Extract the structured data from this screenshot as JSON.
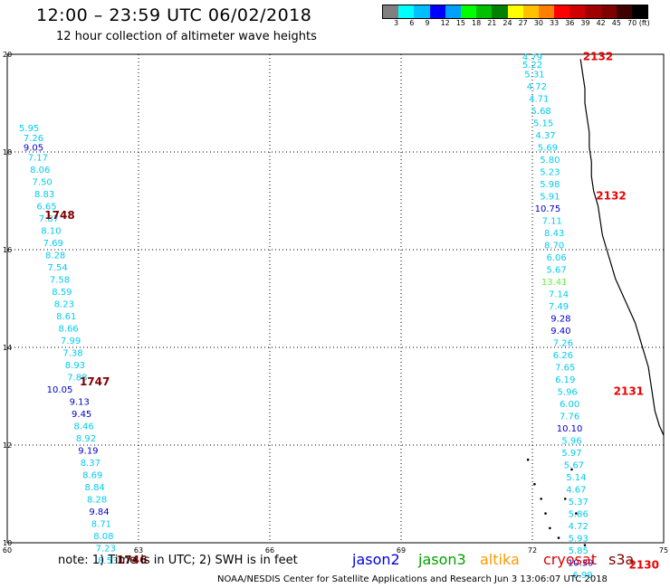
{
  "header": {
    "title": "12:00 – 23:59 UTC 06/02/2018",
    "subtitle": "12 hour collection of altimeter wave heights"
  },
  "legend": {
    "colors": [
      "#808080",
      "#00ffff",
      "#00bfff",
      "#0000ff",
      "#00a0ff",
      "#00ff00",
      "#00c000",
      "#008000",
      "#ffff00",
      "#ffc000",
      "#ff8000",
      "#ff0000",
      "#d00000",
      "#a00000",
      "#800000",
      "#400000",
      "#000000"
    ],
    "labels": [
      "3",
      "6",
      "9",
      "12",
      "15",
      "18",
      "21",
      "24",
      "27",
      "30",
      "33",
      "36",
      "39",
      "42",
      "45",
      "70 (ft)"
    ]
  },
  "axes": {
    "x_ticks": [
      "60",
      "63",
      "66",
      "69",
      "72",
      "75"
    ],
    "y_ticks": [
      "20",
      "18",
      "16",
      "14",
      "12",
      "10"
    ],
    "x_range": [
      60,
      75
    ],
    "y_range": [
      10,
      20
    ]
  },
  "tracks": [
    {
      "name": "track-1748",
      "tag": "1748",
      "tag_lat": 16.7,
      "tag_lon": 61.2,
      "points": [
        {
          "lat": 18.5,
          "lon": 60.5,
          "v": "5.95",
          "c": "#00ccee"
        },
        {
          "lat": 18.3,
          "lon": 60.6,
          "v": "7.26",
          "c": "#00ccee"
        },
        {
          "lat": 18.1,
          "lon": 60.6,
          "v": "9.05",
          "c": "#0000cc"
        },
        {
          "lat": 17.9,
          "lon": 60.7,
          "v": "7.17",
          "c": "#00ccee"
        },
        {
          "lat": 17.65,
          "lon": 60.75,
          "v": "8.06",
          "c": "#00ccee"
        },
        {
          "lat": 17.4,
          "lon": 60.8,
          "v": "7.50",
          "c": "#00ccee"
        },
        {
          "lat": 17.15,
          "lon": 60.85,
          "v": "8.83",
          "c": "#00ccee"
        },
        {
          "lat": 16.9,
          "lon": 60.9,
          "v": "6.65",
          "c": "#00ccee"
        },
        {
          "lat": 16.65,
          "lon": 60.95,
          "v": "7.87",
          "c": "#00ccee"
        },
        {
          "lat": 16.4,
          "lon": 61.0,
          "v": "8.10",
          "c": "#00ccee"
        },
        {
          "lat": 16.15,
          "lon": 61.05,
          "v": "7.69",
          "c": "#00ccee"
        },
        {
          "lat": 15.9,
          "lon": 61.1,
          "v": "8.28",
          "c": "#00ccee"
        },
        {
          "lat": 15.65,
          "lon": 61.15,
          "v": "7.54",
          "c": "#00ccee"
        },
        {
          "lat": 15.4,
          "lon": 61.2,
          "v": "7.58",
          "c": "#00ccee"
        },
        {
          "lat": 15.15,
          "lon": 61.25,
          "v": "8.59",
          "c": "#00ccee"
        },
        {
          "lat": 14.9,
          "lon": 61.3,
          "v": "8.23",
          "c": "#00ccee"
        },
        {
          "lat": 14.65,
          "lon": 61.35,
          "v": "8.61",
          "c": "#00ccee"
        },
        {
          "lat": 14.4,
          "lon": 61.4,
          "v": "8.66",
          "c": "#00ccee"
        },
        {
          "lat": 14.15,
          "lon": 61.45,
          "v": "7.99",
          "c": "#00ccee"
        },
        {
          "lat": 13.9,
          "lon": 61.5,
          "v": "7.38",
          "c": "#00ccee"
        }
      ]
    },
    {
      "name": "track-1747",
      "tag": "1747",
      "tag_lat": 13.3,
      "tag_lon": 62.0,
      "points": [
        {
          "lat": 13.65,
          "lon": 61.55,
          "v": "8.93",
          "c": "#00ccee"
        },
        {
          "lat": 13.4,
          "lon": 61.6,
          "v": "7.88",
          "c": "#00ccee"
        },
        {
          "lat": 13.15,
          "lon": 61.2,
          "v": "10.05",
          "c": "#0000cc"
        },
        {
          "lat": 12.9,
          "lon": 61.65,
          "v": "9.13",
          "c": "#0000cc"
        },
        {
          "lat": 12.65,
          "lon": 61.7,
          "v": "9.45",
          "c": "#0000cc"
        },
        {
          "lat": 12.4,
          "lon": 61.75,
          "v": "8.46",
          "c": "#00ccee"
        },
        {
          "lat": 12.15,
          "lon": 61.8,
          "v": "8.92",
          "c": "#00ccee"
        },
        {
          "lat": 11.9,
          "lon": 61.85,
          "v": "9.19",
          "c": "#0000cc"
        },
        {
          "lat": 11.65,
          "lon": 61.9,
          "v": "8.37",
          "c": "#00ccee"
        },
        {
          "lat": 11.4,
          "lon": 61.95,
          "v": "8.69",
          "c": "#00ccee"
        },
        {
          "lat": 11.15,
          "lon": 62.0,
          "v": "8.84",
          "c": "#00ccee"
        },
        {
          "lat": 10.9,
          "lon": 62.05,
          "v": "8.28",
          "c": "#00ccee"
        },
        {
          "lat": 10.65,
          "lon": 62.1,
          "v": "9.84",
          "c": "#0000cc"
        },
        {
          "lat": 10.4,
          "lon": 62.15,
          "v": "8.71",
          "c": "#00ccee"
        },
        {
          "lat": 10.15,
          "lon": 62.2,
          "v": "8.08",
          "c": "#00ccee"
        },
        {
          "lat": 9.9,
          "lon": 62.25,
          "v": "7.23",
          "c": "#00ccee"
        },
        {
          "lat": 9.65,
          "lon": 62.3,
          "v": "8.53",
          "c": "#00ccee"
        }
      ]
    },
    {
      "name": "track-1746",
      "tag": "1746",
      "tag_lat": 9.65,
      "tag_lon": 62.85,
      "points": []
    },
    {
      "name": "track-2132",
      "tag": "2132",
      "tag_lat": 19.95,
      "tag_lon": 73.5,
      "points": [
        {
          "lat": 19.95,
          "lon": 72.0,
          "v": "4.79",
          "c": "#00ccee"
        },
        {
          "lat": 19.8,
          "lon": 72.0,
          "v": "5.22",
          "c": "#00ccee"
        },
        {
          "lat": 19.6,
          "lon": 72.05,
          "v": "5.31",
          "c": "#00ccee"
        },
        {
          "lat": 19.35,
          "lon": 72.1,
          "v": "4.72",
          "c": "#00ccee"
        },
        {
          "lat": 19.1,
          "lon": 72.15,
          "v": "4.71",
          "c": "#00ccee"
        },
        {
          "lat": 18.85,
          "lon": 72.2,
          "v": "5.68",
          "c": "#00ccee"
        },
        {
          "lat": 18.6,
          "lon": 72.25,
          "v": "5.15",
          "c": "#00ccee"
        },
        {
          "lat": 18.35,
          "lon": 72.3,
          "v": "4.37",
          "c": "#00ccee"
        },
        {
          "lat": 18.1,
          "lon": 72.35,
          "v": "5.69",
          "c": "#00ccee"
        },
        {
          "lat": 17.85,
          "lon": 72.4,
          "v": "5.80",
          "c": "#00ccee"
        },
        {
          "lat": 17.6,
          "lon": 72.4,
          "v": "5.23",
          "c": "#00ccee"
        },
        {
          "lat": 17.35,
          "lon": 72.4,
          "v": "5.98",
          "c": "#00ccee"
        },
        {
          "lat": 17.1,
          "lon": 72.4,
          "v": "5.91",
          "c": "#00ccee"
        }
      ]
    },
    {
      "name": "track-2132b",
      "tag": "2132",
      "tag_lat": 17.1,
      "tag_lon": 73.8,
      "points": [
        {
          "lat": 16.85,
          "lon": 72.35,
          "v": "10.75",
          "c": "#0000cc"
        },
        {
          "lat": 16.6,
          "lon": 72.45,
          "v": "7.11",
          "c": "#00ccee"
        },
        {
          "lat": 16.35,
          "lon": 72.5,
          "v": "8.43",
          "c": "#00ccee"
        },
        {
          "lat": 16.1,
          "lon": 72.5,
          "v": "8.70",
          "c": "#00ccee"
        },
        {
          "lat": 15.85,
          "lon": 72.55,
          "v": "6.06",
          "c": "#00ccee"
        },
        {
          "lat": 15.6,
          "lon": 72.55,
          "v": "5.67",
          "c": "#00ccee"
        },
        {
          "lat": 15.35,
          "lon": 72.5,
          "v": "13.41",
          "c": "#66ee44"
        },
        {
          "lat": 15.1,
          "lon": 72.6,
          "v": "7.14",
          "c": "#00ccee"
        },
        {
          "lat": 14.85,
          "lon": 72.6,
          "v": "7.49",
          "c": "#00ccee"
        },
        {
          "lat": 14.6,
          "lon": 72.65,
          "v": "9.28",
          "c": "#0000cc"
        },
        {
          "lat": 14.35,
          "lon": 72.65,
          "v": "9.40",
          "c": "#0000cc"
        },
        {
          "lat": 14.1,
          "lon": 72.7,
          "v": "7.26",
          "c": "#00ccee"
        },
        {
          "lat": 13.85,
          "lon": 72.7,
          "v": "6.26",
          "c": "#00ccee"
        },
        {
          "lat": 13.6,
          "lon": 72.75,
          "v": "7.65",
          "c": "#00ccee"
        },
        {
          "lat": 13.35,
          "lon": 72.75,
          "v": "6.19",
          "c": "#00ccee"
        }
      ]
    },
    {
      "name": "track-2131",
      "tag": "2131",
      "tag_lat": 13.1,
      "tag_lon": 74.2,
      "points": [
        {
          "lat": 13.1,
          "lon": 72.8,
          "v": "5.96",
          "c": "#00ccee"
        },
        {
          "lat": 12.85,
          "lon": 72.85,
          "v": "6.00",
          "c": "#00ccee"
        },
        {
          "lat": 12.6,
          "lon": 72.85,
          "v": "7.76",
          "c": "#00ccee"
        },
        {
          "lat": 12.35,
          "lon": 72.85,
          "v": "10.10",
          "c": "#0000cc"
        },
        {
          "lat": 12.1,
          "lon": 72.9,
          "v": "5.96",
          "c": "#00ccee"
        },
        {
          "lat": 11.85,
          "lon": 72.9,
          "v": "5.97",
          "c": "#00ccee"
        },
        {
          "lat": 11.6,
          "lon": 72.95,
          "v": "5.67",
          "c": "#00ccee"
        },
        {
          "lat": 11.35,
          "lon": 73.0,
          "v": "5.14",
          "c": "#00ccee"
        },
        {
          "lat": 11.1,
          "lon": 73.0,
          "v": "4.67",
          "c": "#00ccee"
        },
        {
          "lat": 10.85,
          "lon": 73.05,
          "v": "5.37",
          "c": "#00ccee"
        },
        {
          "lat": 10.6,
          "lon": 73.05,
          "v": "5.86",
          "c": "#00ccee"
        },
        {
          "lat": 10.35,
          "lon": 73.05,
          "v": "4.72",
          "c": "#00ccee"
        },
        {
          "lat": 10.1,
          "lon": 73.05,
          "v": "5.93",
          "c": "#00ccee"
        },
        {
          "lat": 9.85,
          "lon": 73.05,
          "v": "5.85",
          "c": "#00ccee"
        }
      ]
    },
    {
      "name": "track-2130",
      "tag": "2130",
      "tag_lat": 9.55,
      "tag_lon": 74.55,
      "points": [
        {
          "lat": 9.6,
          "lon": 73.1,
          "v": "10.39",
          "c": "#0000cc"
        },
        {
          "lat": 9.35,
          "lon": 73.15,
          "v": "6.99",
          "c": "#00ccee"
        }
      ]
    }
  ],
  "note": {
    "text": "note:  1) Time is in UTC;  2) SWH is in feet",
    "satellites": [
      {
        "name": "jason2",
        "color": "#0000dd"
      },
      {
        "name": "jason3",
        "color": "#00a000"
      },
      {
        "name": "altika",
        "color": "#ff9900"
      },
      {
        "name": "cryosat",
        "color": "#dd0000"
      },
      {
        "name": "s3a",
        "color": "#800000"
      }
    ]
  },
  "footer": "NOAA/NESDIS Center for Satellite Applications and Research    Jun  3 13:06:07 UTC 2018"
}
